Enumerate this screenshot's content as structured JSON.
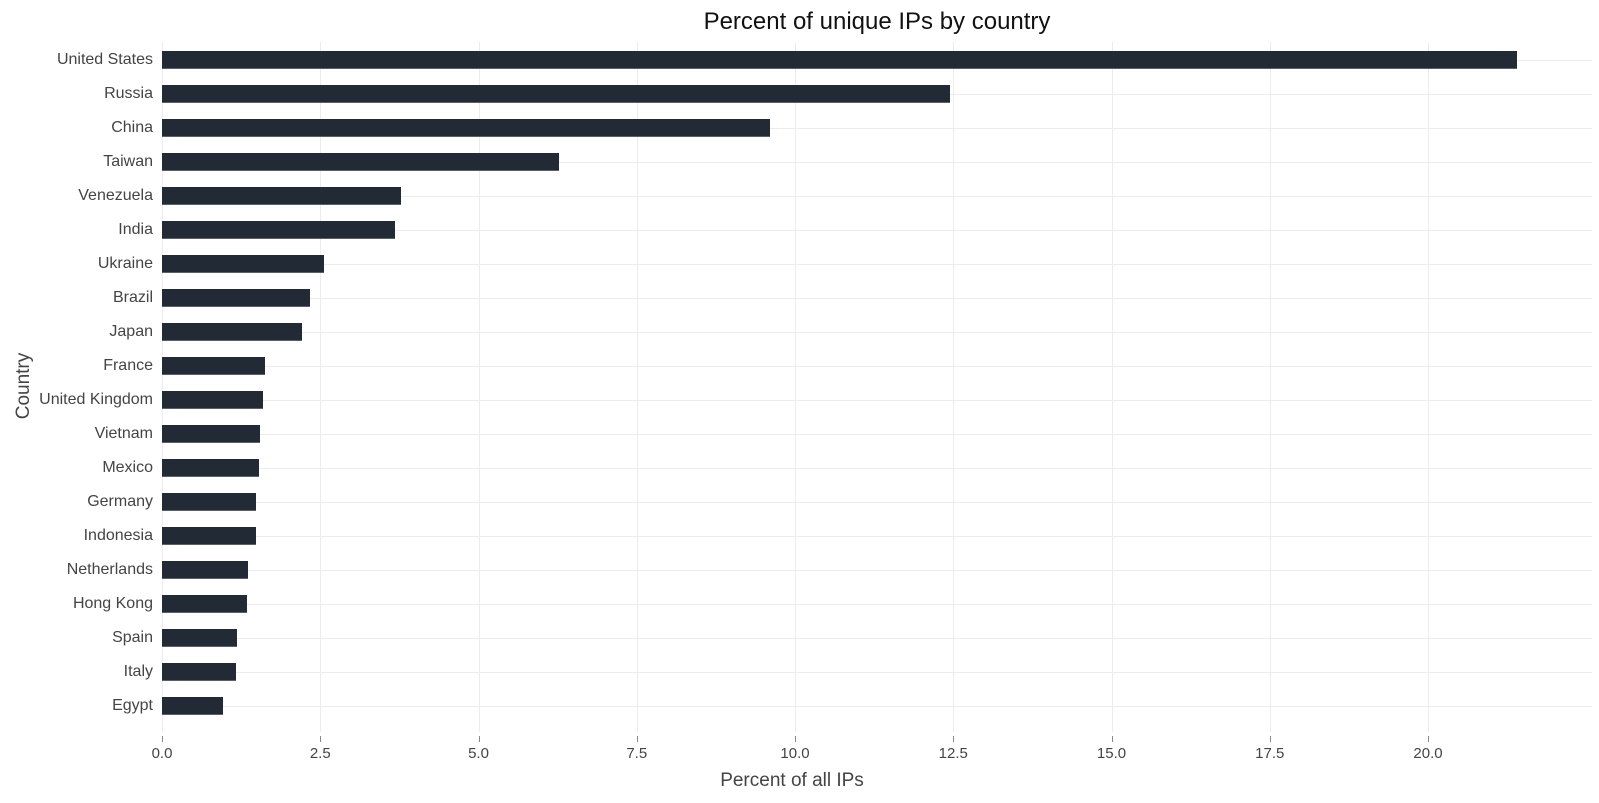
{
  "chart_data": {
    "type": "bar",
    "orientation": "horizontal",
    "title": "Percent of unique IPs by country",
    "xlabel": "Percent of all IPs",
    "ylabel": "Country",
    "xlim": [
      0,
      22.6
    ],
    "xticks": [
      "0.0",
      "2.5",
      "5.0",
      "7.5",
      "10.0",
      "12.5",
      "15.0",
      "17.5",
      "20.0"
    ],
    "xtick_values": [
      0,
      2.5,
      5,
      7.5,
      10,
      12.5,
      15,
      17.5,
      20
    ],
    "grid": true,
    "legend": null,
    "bar_color": "#222a35",
    "categories": [
      "United States",
      "Russia",
      "China",
      "Taiwan",
      "Venezuela",
      "India",
      "Ukraine",
      "Brazil",
      "Japan",
      "France",
      "United Kingdom",
      "Vietnam",
      "Mexico",
      "Germany",
      "Indonesia",
      "Netherlands",
      "Hong Kong",
      "Spain",
      "Italy",
      "Egypt"
    ],
    "values": [
      21.4,
      12.45,
      9.6,
      6.27,
      3.78,
      3.68,
      2.56,
      2.34,
      2.21,
      1.63,
      1.6,
      1.55,
      1.54,
      1.49,
      1.48,
      1.36,
      1.34,
      1.18,
      1.17,
      0.96
    ]
  }
}
